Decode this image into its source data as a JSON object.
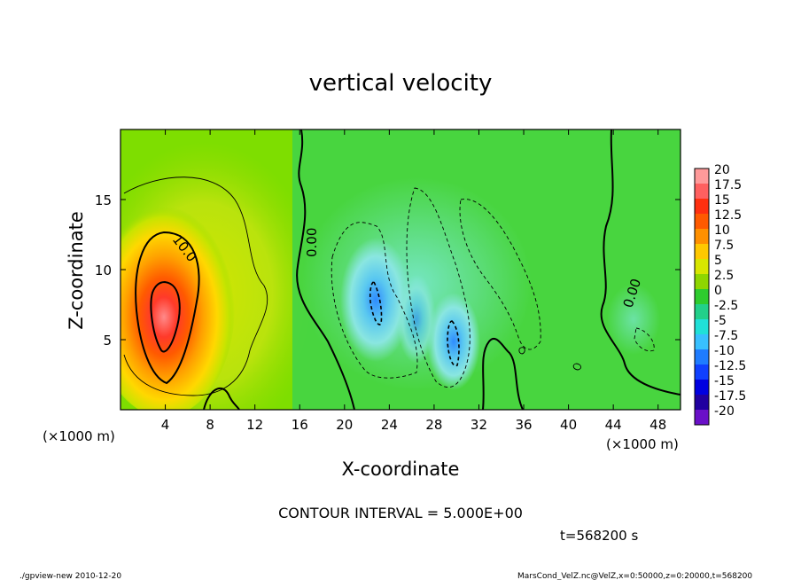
{
  "chart_data": {
    "type": "heatmap",
    "title": "vertical velocity",
    "xlabel": "X-coordinate",
    "ylabel": "Z-coordinate",
    "x_unit": "(×1000 m)",
    "y_unit": "(×1000 m)",
    "xlim": [
      0,
      50
    ],
    "ylim": [
      0,
      20
    ],
    "x_ticks": [
      "4",
      "8",
      "12",
      "16",
      "20",
      "24",
      "28",
      "32",
      "36",
      "40",
      "44",
      "48"
    ],
    "y_ticks": [
      "5",
      "10",
      "15"
    ],
    "colorbar": {
      "labels": [
        "20",
        "17.5",
        "15",
        "12.5",
        "10",
        "7.5",
        "5",
        "2.5",
        "0",
        "-2.5",
        "-5",
        "-7.5",
        "-10",
        "-12.5",
        "-15",
        "-17.5",
        "-20"
      ],
      "colors": [
        "#ff9a9a",
        "#ff6060",
        "#ff3010",
        "#ff5a00",
        "#ff9000",
        "#ffc800",
        "#d8e600",
        "#8fd600",
        "#2ecc2e",
        "#22d08a",
        "#20e0d8",
        "#38c0ff",
        "#1f7cff",
        "#1040ff",
        "#0000e0",
        "#2000a0",
        "#6a10c8"
      ]
    },
    "contour_labels": [
      "10.0",
      "0.00",
      "0.00"
    ],
    "contour_interval": "CONTOUR INTERVAL = 5.000E+00",
    "time": "t=568200 s",
    "footer_left": "./gpview-new  2010-12-20",
    "footer_right": "MarsCond_VelZ.nc@VelZ,x=0:50000,z=0:20000,t=568200",
    "features": [
      {
        "x": 4.0,
        "z": 7.5,
        "value": 20
      },
      {
        "x": 23.0,
        "z": 7.5,
        "value": -8
      },
      {
        "x": 30.0,
        "z": 5.0,
        "value": -8
      },
      {
        "x": 26.0,
        "z": 6.0,
        "value": -4
      }
    ]
  }
}
